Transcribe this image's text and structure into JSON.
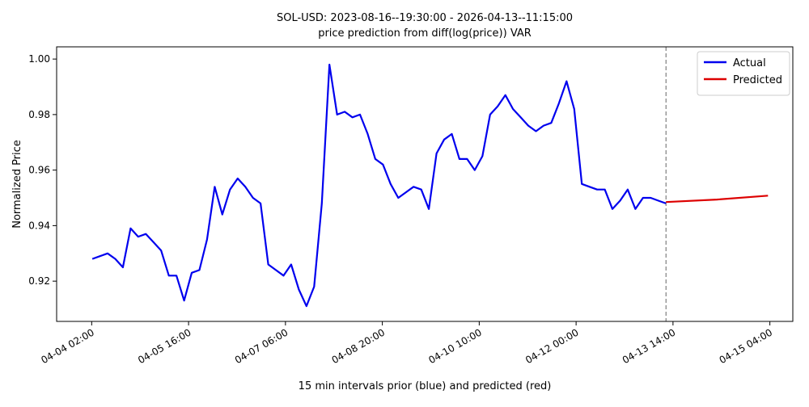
{
  "chart_data": {
    "type": "line",
    "title": "SOL-USD: 2023-08-16--19:30:00 - 2026-04-13--11:15:00",
    "subtitle": "price prediction from diff(log(price)) VAR",
    "xlabel": "15 min intervals prior (blue) and predicted (red)",
    "ylabel": "Normalized Price",
    "xlim": [
      "04-03 12:15",
      "04-15 13:00"
    ],
    "xticks": [
      "04-04 02:00",
      "04-05 16:00",
      "04-07 06:00",
      "04-08 20:00",
      "04-10 10:00",
      "04-12 00:00",
      "04-13 14:00",
      "04-15 04:00"
    ],
    "ylim": [
      0.9055,
      1.0044
    ],
    "yticks": [
      {
        "value": 0.92,
        "label": "0.92"
      },
      {
        "value": 0.94,
        "label": "0.94"
      },
      {
        "value": 0.96,
        "label": "0.96"
      },
      {
        "value": 0.98,
        "label": "0.98"
      },
      {
        "value": 1.0,
        "label": "1.00"
      }
    ],
    "vline": "04-13 11:15",
    "legend": "upper right",
    "series": [
      {
        "name": "Actual",
        "color": "#0000ee",
        "x": [
          "04-04 02:15",
          "04-04 05:15",
          "04-04 08:15",
          "04-04 11:15",
          "04-04 14:15",
          "04-04 17:15",
          "04-04 20:15",
          "04-04 23:15",
          "04-05 02:15",
          "04-05 05:15",
          "04-05 08:15",
          "04-05 11:15",
          "04-05 14:15",
          "04-05 17:15",
          "04-05 20:15",
          "04-05 23:15",
          "04-06 02:15",
          "04-06 05:15",
          "04-06 08:15",
          "04-06 11:15",
          "04-06 14:15",
          "04-06 17:15",
          "04-06 20:15",
          "04-06 23:15",
          "04-07 02:15",
          "04-07 05:15",
          "04-07 08:15",
          "04-07 11:15",
          "04-07 14:15",
          "04-07 17:15",
          "04-07 20:15",
          "04-07 23:15",
          "04-08 02:15",
          "04-08 05:15",
          "04-08 08:15",
          "04-08 11:15",
          "04-08 14:15",
          "04-08 17:15",
          "04-08 20:15",
          "04-08 23:15",
          "04-09 02:15",
          "04-09 05:15",
          "04-09 08:15",
          "04-09 11:15",
          "04-09 14:15",
          "04-09 17:15",
          "04-09 20:15",
          "04-09 23:15",
          "04-10 02:15",
          "04-10 05:15",
          "04-10 08:15",
          "04-10 11:15",
          "04-10 14:15",
          "04-10 17:15",
          "04-10 20:15",
          "04-10 23:15",
          "04-11 02:15",
          "04-11 05:15",
          "04-11 08:15",
          "04-11 11:15",
          "04-11 14:15",
          "04-11 17:15",
          "04-11 20:15",
          "04-11 23:15",
          "04-12 02:15",
          "04-12 05:15",
          "04-12 08:15",
          "04-12 11:15",
          "04-12 14:15",
          "04-12 17:15",
          "04-12 20:15",
          "04-12 23:15",
          "04-13 02:15",
          "04-13 05:15",
          "04-13 08:15",
          "04-13 11:15"
        ],
        "values": [
          0.928,
          0.929,
          0.93,
          0.928,
          0.925,
          0.939,
          0.936,
          0.937,
          0.934,
          0.931,
          0.922,
          0.922,
          0.913,
          0.923,
          0.924,
          0.935,
          0.954,
          0.944,
          0.953,
          0.957,
          0.954,
          0.95,
          0.948,
          0.926,
          0.924,
          0.922,
          0.926,
          0.917,
          0.911,
          0.918,
          0.948,
          0.998,
          0.98,
          0.981,
          0.979,
          0.98,
          0.973,
          0.964,
          0.962,
          0.955,
          0.95,
          0.952,
          0.954,
          0.953,
          0.946,
          0.966,
          0.971,
          0.973,
          0.964,
          0.964,
          0.96,
          0.965,
          0.98,
          0.983,
          0.987,
          0.982,
          0.979,
          0.976,
          0.974,
          0.976,
          0.977,
          0.984,
          0.992,
          0.982,
          0.955,
          0.954,
          0.953,
          0.953,
          0.946,
          0.949,
          0.953,
          0.946,
          0.95,
          0.95,
          0.949,
          0.948
        ]
      },
      {
        "name": "Predicted",
        "color": "#dd0000",
        "x": [
          "04-13 11:15",
          "04-14 07:15",
          "04-15 03:15"
        ],
        "values": [
          0.9485,
          0.9494,
          0.9508
        ]
      }
    ]
  }
}
